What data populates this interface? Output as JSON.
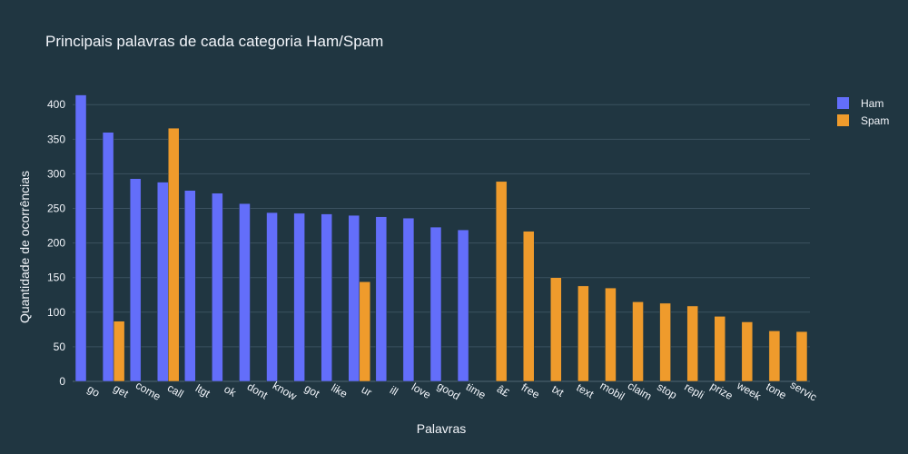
{
  "chart_data": {
    "type": "bar",
    "title": "Principais palavras de cada categoria Ham/Spam",
    "xlabel": "Palavras",
    "ylabel": "Quantidade de ocorrências",
    "ylim": [
      0,
      420
    ],
    "yticks": [
      0,
      50,
      100,
      150,
      200,
      250,
      300,
      350,
      400
    ],
    "grid": true,
    "legend_position": "top-right",
    "categories": [
      "go",
      "get",
      "come",
      "call",
      "ltgt",
      "ok",
      "dont",
      "know",
      "got",
      "like",
      "ur",
      "ill",
      "love",
      "good",
      "time",
      "â£",
      "free",
      "txt",
      "text",
      "mobil",
      "claim",
      "stop",
      "repli",
      "prize",
      "week",
      "tone",
      "servic"
    ],
    "series": [
      {
        "name": "Ham",
        "color": "#636efa",
        "values": [
          414,
          360,
          293,
          288,
          276,
          272,
          257,
          244,
          243,
          242,
          240,
          238,
          236,
          223,
          219,
          null,
          null,
          null,
          null,
          null,
          null,
          null,
          null,
          null,
          null,
          null,
          null
        ]
      },
      {
        "name": "Spam",
        "color": "#ef9b2c",
        "values": [
          null,
          87,
          null,
          366,
          null,
          null,
          null,
          null,
          null,
          null,
          144,
          null,
          null,
          null,
          null,
          289,
          217,
          150,
          138,
          135,
          115,
          113,
          109,
          94,
          86,
          73,
          72
        ]
      }
    ]
  }
}
